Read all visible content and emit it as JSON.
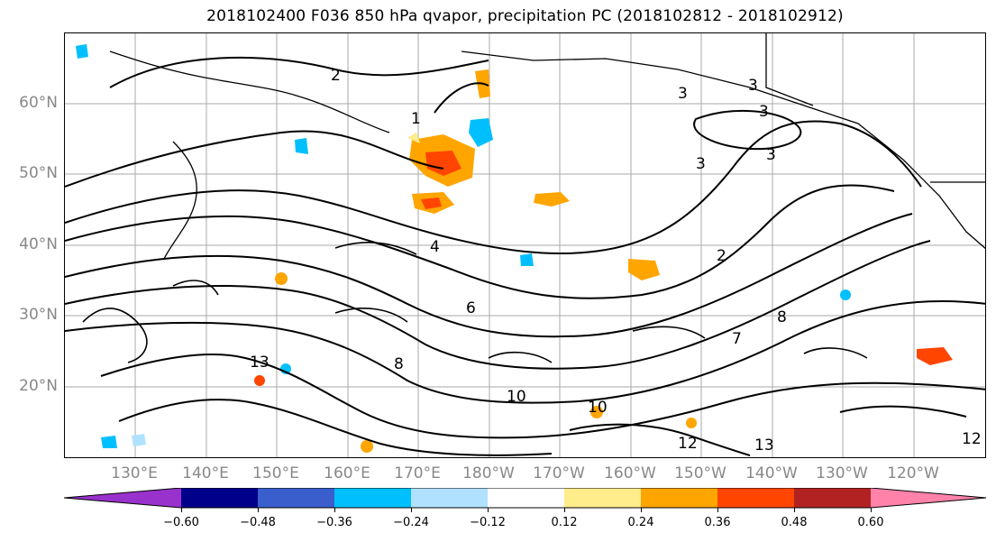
{
  "title": "2018102400 F036 850 hPa qvapor, precipitation PC (2018102812 - 2018102912)",
  "lat_labels": [
    "60°N",
    "50°N",
    "40°N",
    "30°N",
    "20°N"
  ],
  "lon_labels": [
    "130°E",
    "140°E",
    "150°E",
    "160°E",
    "170°E",
    "180°W",
    "170°W",
    "160°W",
    "150°W",
    "140°W",
    "130°W",
    "120°W"
  ],
  "contour_labels": [
    "2",
    "3",
    "3",
    "3",
    "3",
    "3",
    "4",
    "2",
    "1",
    "6",
    "8",
    "13",
    "10",
    "7",
    "8",
    "10",
    "12",
    "13",
    "12"
  ],
  "colorbar": {
    "ticks": [
      "−0.60",
      "−0.48",
      "−0.36",
      "−0.24",
      "−0.12",
      "0.12",
      "0.24",
      "0.36",
      "0.48",
      "0.60"
    ],
    "colors": [
      "#9932cc",
      "#00008b",
      "#3a5fcd",
      "#00bfff",
      "#b0e2ff",
      "#ffffff",
      "#ffec8b",
      "#ffa500",
      "#ff4500",
      "#b22222",
      "#ff82ab"
    ]
  },
  "map_colors": {
    "line": "#000000",
    "grid": "#aaaaaa",
    "positive_fill": "#ffa500",
    "strong_positive_fill": "#ff4500",
    "light_positive_fill": "#ffec8b",
    "negative_fill": "#00bfff",
    "light_negative_fill": "#b0e2ff"
  }
}
